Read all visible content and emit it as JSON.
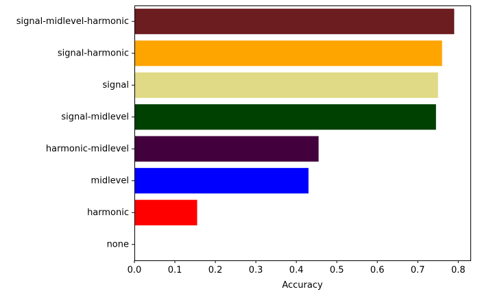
{
  "chart_data": {
    "type": "bar",
    "orientation": "horizontal",
    "title": "",
    "xlabel": "Accuracy",
    "ylabel": "",
    "xlim": [
      0,
      0.83
    ],
    "xticks": [
      "0.0",
      "0.1",
      "0.2",
      "0.3",
      "0.4",
      "0.5",
      "0.6",
      "0.7",
      "0.8"
    ],
    "grid": false,
    "categories": [
      "none",
      "harmonic",
      "midlevel",
      "harmonic-midlevel",
      "signal-midlevel",
      "signal",
      "signal-harmonic",
      "signal-midlevel-harmonic"
    ],
    "values": [
      0.0,
      0.155,
      0.43,
      0.455,
      0.745,
      0.75,
      0.76,
      0.79
    ],
    "colors": [
      "#ffffff",
      "#ff0000",
      "#0000ff",
      "#42003d",
      "#004000",
      "#e0d985",
      "#ffa500",
      "#6b1d1f"
    ]
  }
}
